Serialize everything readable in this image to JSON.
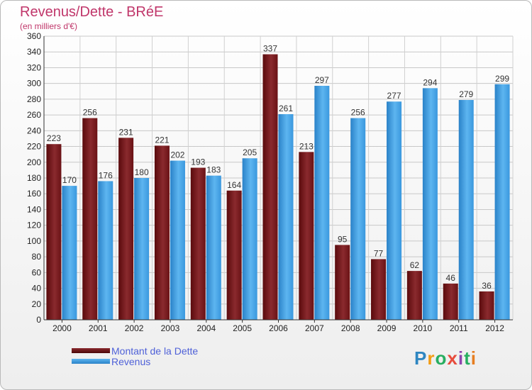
{
  "header": {
    "title": "Revenus/Dette - BRéE",
    "subtitle": "(en milliers d'€)"
  },
  "legend": {
    "items": [
      {
        "label": "Montant de la Dette",
        "color": "#6e0f12"
      },
      {
        "label": "Revenus",
        "color": "#3e9de2"
      }
    ]
  },
  "logo": {
    "text": "Proxiti",
    "letters": [
      "P",
      "r",
      "o",
      "x",
      "i",
      "t",
      "i"
    ],
    "colors": [
      "#2e86c1",
      "#f39c12",
      "#27ae60",
      "#e74c3c",
      "#8e44ad",
      "#27ae60",
      "#e67e22"
    ]
  },
  "chart_data": {
    "type": "bar",
    "title": "Revenus/Dette - BRéE",
    "subtitle": "(en milliers d'€)",
    "categories": [
      "2000",
      "2001",
      "2002",
      "2003",
      "2004",
      "2005",
      "2006",
      "2007",
      "2008",
      "2009",
      "2010",
      "2011",
      "2012"
    ],
    "series": [
      {
        "name": "Montant de la Dette",
        "color": "#6e0f12",
        "values": [
          223,
          256,
          231,
          221,
          193,
          164,
          337,
          213,
          95,
          77,
          62,
          46,
          36
        ]
      },
      {
        "name": "Revenus",
        "color": "#3e9de2",
        "values": [
          170,
          176,
          180,
          202,
          183,
          205,
          261,
          297,
          256,
          277,
          294,
          279,
          299
        ]
      }
    ],
    "ylim": [
      0,
      360
    ],
    "yticks": [
      0,
      20,
      40,
      60,
      80,
      100,
      120,
      140,
      160,
      180,
      200,
      220,
      240,
      260,
      280,
      300,
      320,
      340,
      360
    ],
    "grid": true,
    "legend_position": "bottom-left"
  }
}
